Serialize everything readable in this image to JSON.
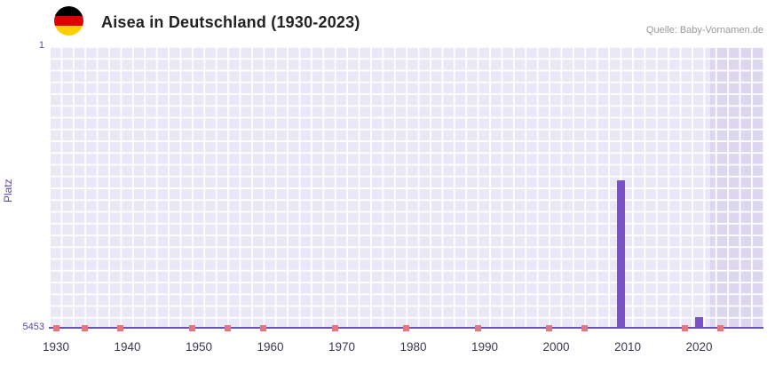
{
  "header": {
    "title": "Aisea in Deutschland (1930-2023)",
    "source": "Quelle: Baby-Vornamen.de"
  },
  "chart_data": {
    "type": "bar",
    "title": "Aisea in Deutschland (1930-2023)",
    "source": "Quelle: Baby-Vornamen.de",
    "ylabel": "Platz",
    "y_axis": {
      "top_tick_label": "1",
      "bottom_tick_label": "5453",
      "best_rank": 1,
      "worst_rank": 5453,
      "inverted": true
    },
    "x_axis": {
      "tick_years": [
        "1930",
        "1940",
        "1950",
        "1960",
        "1970",
        "1980",
        "1990",
        "2000",
        "2010",
        "2020"
      ],
      "domain_min": 1929,
      "domain_max": 2029
    },
    "bars": [
      {
        "year": 2009,
        "rank": 2590
      },
      {
        "year": 2020,
        "rank": 5230
      }
    ],
    "unranked_marker_years": [
      1930,
      1934,
      1939,
      1949,
      1954,
      1959,
      1969,
      1979,
      1989,
      1999,
      2004,
      2018,
      2023
    ],
    "highlight_region": {
      "from_year": 2021.5,
      "to_year": 2029
    },
    "grid": true,
    "legend_position": "none",
    "colors": {
      "bar": "#7B52C8",
      "marker": "#E5757E",
      "plot_bg": "#EAE7F6",
      "highlight_bg": "#DCD6EE",
      "grid": "#FFFFFF",
      "axis": "#6A52C4",
      "axis_text": "#5A4AA0",
      "tick_text": "#3A3A55",
      "title_text": "#222222",
      "source_text": "#999999",
      "flag_black": "#000000",
      "flag_red": "#DD0000",
      "flag_gold": "#FFCE00"
    }
  }
}
